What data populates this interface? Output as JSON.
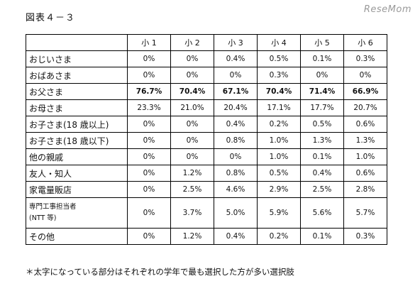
{
  "figure_title": "図表４－３",
  "logo_text": "ReseMom",
  "table": {
    "columns": [
      "小 1",
      "小 2",
      "小 3",
      "小 4",
      "小 5",
      "小 6"
    ],
    "rows": [
      {
        "label": "おじいさま",
        "values": [
          "0%",
          "0%",
          "0.4%",
          "0.5%",
          "0.1%",
          "0.3%"
        ],
        "bold": false
      },
      {
        "label": "おばあさま",
        "values": [
          "0%",
          "0%",
          "0%",
          "0.3%",
          "0%",
          "0%"
        ],
        "bold": false
      },
      {
        "label": "お父さま",
        "values": [
          "76.7%",
          "70.4%",
          "67.1%",
          "70.4%",
          "71.4%",
          "66.9%"
        ],
        "bold": true
      },
      {
        "label": "お母さま",
        "values": [
          "23.3%",
          "21.0%",
          "20.4%",
          "17.1%",
          "17.7%",
          "20.7%"
        ],
        "bold": false
      },
      {
        "label": "お子さま(18 歳以上)",
        "values": [
          "0%",
          "0%",
          "0.4%",
          "0.2%",
          "0.5%",
          "0.6%"
        ],
        "bold": false
      },
      {
        "label": "お子さま(18 歳以下)",
        "values": [
          "0%",
          "0%",
          "0.8%",
          "1.0%",
          "1.3%",
          "1.3%"
        ],
        "bold": false
      },
      {
        "label": "他の親戚",
        "values": [
          "0%",
          "0%",
          "0%",
          "1.0%",
          "0.1%",
          "1.0%"
        ],
        "bold": false
      },
      {
        "label": "友人・知人",
        "values": [
          "0%",
          "1.2%",
          "0.8%",
          "0.5%",
          "0.4%",
          "0.6%"
        ],
        "bold": false
      },
      {
        "label": "家電量販店",
        "values": [
          "0%",
          "2.5%",
          "4.6%",
          "2.9%",
          "2.5%",
          "2.8%"
        ],
        "bold": false
      },
      {
        "label": "専門工事担当者",
        "label2": "(NTT 等)",
        "values": [
          "0%",
          "3.7%",
          "5.0%",
          "5.9%",
          "5.6%",
          "5.7%"
        ],
        "bold": false,
        "tall": true
      },
      {
        "label": "その他",
        "values": [
          "0%",
          "1.2%",
          "0.4%",
          "0.2%",
          "0.1%",
          "0.3%"
        ],
        "bold": false
      }
    ]
  },
  "footnote": "＊太字になっている部分はそれぞれの学年で最も選択した方が多い選択肢"
}
